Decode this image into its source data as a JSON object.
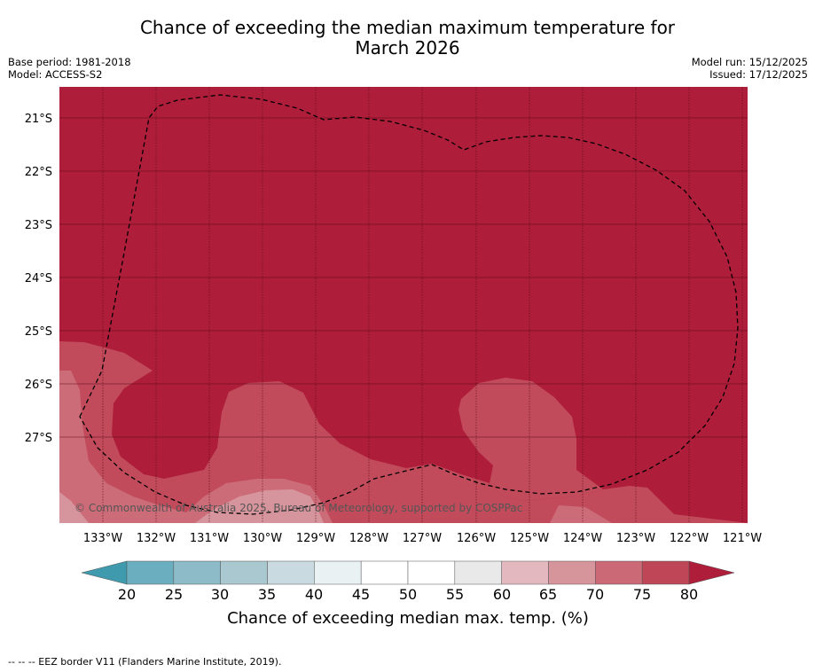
{
  "title_line1": "Chance of exceeding the median maximum temperature for",
  "title_line2": "March 2026",
  "base_period": "Base period: 1981-2018",
  "model": "Model: ACCESS-S2",
  "model_run": "Model run: 15/12/2025",
  "issued": "Issued: 17/12/2025",
  "copyright": "© Commonwealth of Australia 2025, Bureau of Meteorology, supported by COSPPac",
  "lat_ticks": [
    "21°S",
    "22°S",
    "23°S",
    "24°S",
    "25°S",
    "26°S",
    "27°S"
  ],
  "lon_ticks": [
    "133°W",
    "132°W",
    "131°W",
    "130°W",
    "129°W",
    "128°W",
    "127°W",
    "126°W",
    "125°W",
    "124°W",
    "123°W",
    "122°W",
    "121°W"
  ],
  "colorbar": {
    "ticks": [
      "20",
      "25",
      "30",
      "35",
      "40",
      "45",
      "50",
      "55",
      "60",
      "65",
      "70",
      "75",
      "80"
    ],
    "label": "Chance of exceeding median max. temp. (%)",
    "colors": [
      "#6aaebf",
      "#8dbbc7",
      "#a9c8cf",
      "#c9dbe0",
      "#eaf1f3",
      "#ffffff",
      "#ffffff",
      "#e9e9e9",
      "#e3b9bf",
      "#d6949b",
      "#cb6a76",
      "#bf4656"
    ],
    "under_color": "#3f9aae",
    "over_color": "#ae1d39"
  },
  "map_colors": {
    "c80": "#ae1d39",
    "c75": "#c14b5a",
    "c70": "#cc6c78",
    "c65": "#d6949c"
  },
  "legend_text": "--  --  -- EEZ border V11 (Flanders Marine Institute, 2019)."
}
